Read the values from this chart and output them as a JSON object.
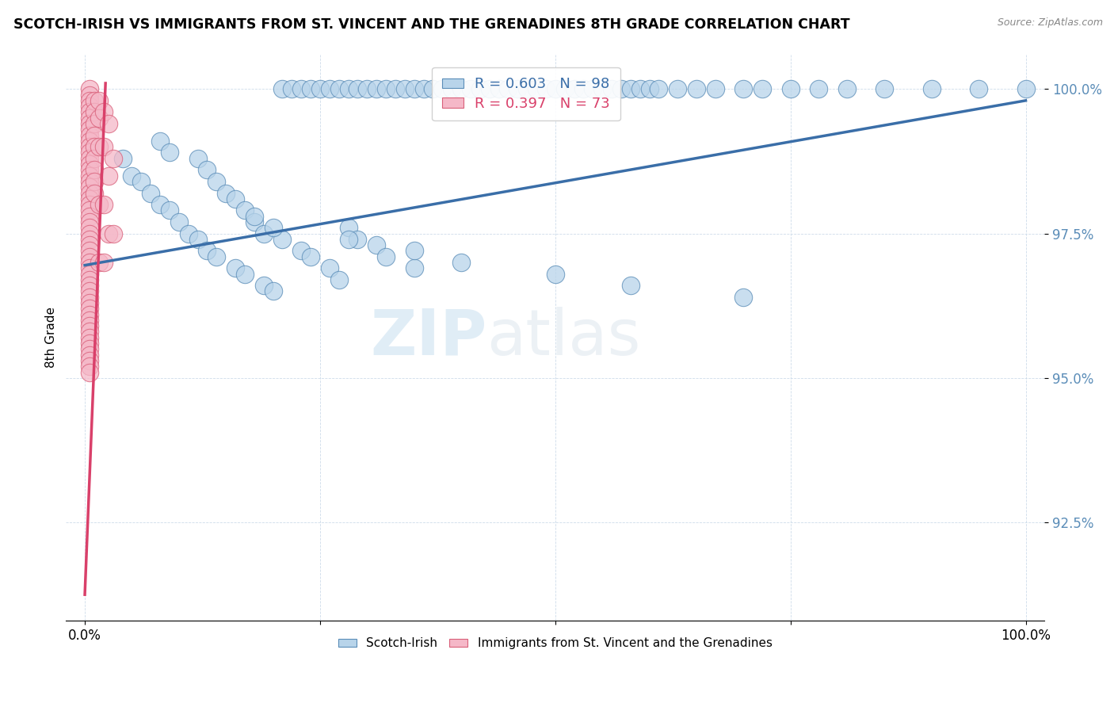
{
  "title": "SCOTCH-IRISH VS IMMIGRANTS FROM ST. VINCENT AND THE GRENADINES 8TH GRADE CORRELATION CHART",
  "source": "Source: ZipAtlas.com",
  "ylabel": "8th Grade",
  "xlim": [
    -0.02,
    1.02
  ],
  "ylim": [
    0.908,
    1.006
  ],
  "yticks": [
    0.925,
    0.95,
    0.975,
    1.0
  ],
  "ytick_labels": [
    "92.5%",
    "95.0%",
    "97.5%",
    "100.0%"
  ],
  "xticks": [
    0.0,
    0.25,
    0.5,
    0.75,
    1.0
  ],
  "xtick_labels": [
    "0.0%",
    "",
    "",
    "",
    "100.0%"
  ],
  "legend_r_blue": "R = 0.603",
  "legend_n_blue": "N = 98",
  "legend_r_pink": "R = 0.397",
  "legend_n_pink": "N = 73",
  "blue_fill": "#b8d4ea",
  "blue_edge": "#5b8db8",
  "pink_fill": "#f5b8c8",
  "pink_edge": "#d9607a",
  "blue_line": "#3a6ea8",
  "pink_line": "#d9406a",
  "watermark_color": "#c8dff0",
  "blue_line_x0": 0.0,
  "blue_line_y0": 0.9695,
  "blue_line_x1": 1.0,
  "blue_line_y1": 0.998,
  "pink_line_x0": 0.0,
  "pink_line_y0": 0.9125,
  "pink_line_x1": 0.022,
  "pink_line_y1": 1.001,
  "blue_x": [
    0.21,
    0.22,
    0.23,
    0.24,
    0.25,
    0.26,
    0.27,
    0.28,
    0.29,
    0.3,
    0.31,
    0.32,
    0.33,
    0.34,
    0.35,
    0.36,
    0.37,
    0.38,
    0.39,
    0.4,
    0.41,
    0.42,
    0.43,
    0.44,
    0.45,
    0.46,
    0.47,
    0.48,
    0.49,
    0.5,
    0.51,
    0.52,
    0.53,
    0.54,
    0.55,
    0.56,
    0.57,
    0.58,
    0.59,
    0.6,
    0.61,
    0.63,
    0.65,
    0.67,
    0.7,
    0.72,
    0.75,
    0.78,
    0.81,
    0.85,
    0.9,
    0.95,
    1.0,
    0.04,
    0.05,
    0.06,
    0.07,
    0.08,
    0.09,
    0.1,
    0.11,
    0.12,
    0.13,
    0.14,
    0.16,
    0.17,
    0.19,
    0.2,
    0.08,
    0.09,
    0.12,
    0.13,
    0.14,
    0.15,
    0.16,
    0.17,
    0.18,
    0.19,
    0.21,
    0.23,
    0.24,
    0.26,
    0.27,
    0.28,
    0.29,
    0.31,
    0.32,
    0.35,
    0.18,
    0.2,
    0.28,
    0.35,
    0.4,
    0.5,
    0.58,
    0.7
  ],
  "blue_y": [
    1.0,
    1.0,
    1.0,
    1.0,
    1.0,
    1.0,
    1.0,
    1.0,
    1.0,
    1.0,
    1.0,
    1.0,
    1.0,
    1.0,
    1.0,
    1.0,
    1.0,
    1.0,
    1.0,
    1.0,
    1.0,
    1.0,
    1.0,
    1.0,
    1.0,
    1.0,
    1.0,
    1.0,
    1.0,
    1.0,
    1.0,
    1.0,
    1.0,
    1.0,
    1.0,
    1.0,
    1.0,
    1.0,
    1.0,
    1.0,
    1.0,
    1.0,
    1.0,
    1.0,
    1.0,
    1.0,
    1.0,
    1.0,
    1.0,
    1.0,
    1.0,
    1.0,
    1.0,
    0.988,
    0.985,
    0.984,
    0.982,
    0.98,
    0.979,
    0.977,
    0.975,
    0.974,
    0.972,
    0.971,
    0.969,
    0.968,
    0.966,
    0.965,
    0.991,
    0.989,
    0.988,
    0.986,
    0.984,
    0.982,
    0.981,
    0.979,
    0.977,
    0.975,
    0.974,
    0.972,
    0.971,
    0.969,
    0.967,
    0.976,
    0.974,
    0.973,
    0.971,
    0.969,
    0.978,
    0.976,
    0.974,
    0.972,
    0.97,
    0.968,
    0.966,
    0.964
  ],
  "pink_x": [
    0.005,
    0.005,
    0.005,
    0.005,
    0.005,
    0.005,
    0.005,
    0.005,
    0.005,
    0.005,
    0.005,
    0.005,
    0.005,
    0.005,
    0.005,
    0.005,
    0.005,
    0.005,
    0.005,
    0.005,
    0.005,
    0.005,
    0.005,
    0.005,
    0.005,
    0.005,
    0.005,
    0.005,
    0.005,
    0.005,
    0.005,
    0.005,
    0.005,
    0.005,
    0.005,
    0.005,
    0.005,
    0.005,
    0.005,
    0.005,
    0.005,
    0.005,
    0.005,
    0.005,
    0.005,
    0.005,
    0.005,
    0.005,
    0.005,
    0.005,
    0.01,
    0.01,
    0.01,
    0.01,
    0.01,
    0.01,
    0.01,
    0.01,
    0.01,
    0.015,
    0.015,
    0.015,
    0.015,
    0.015,
    0.02,
    0.02,
    0.02,
    0.02,
    0.025,
    0.025,
    0.025,
    0.03,
    0.03
  ],
  "pink_y": [
    1.0,
    0.999,
    0.998,
    0.997,
    0.996,
    0.995,
    0.994,
    0.993,
    0.992,
    0.991,
    0.99,
    0.989,
    0.988,
    0.987,
    0.986,
    0.985,
    0.984,
    0.983,
    0.982,
    0.981,
    0.98,
    0.979,
    0.978,
    0.977,
    0.976,
    0.975,
    0.974,
    0.973,
    0.972,
    0.971,
    0.97,
    0.969,
    0.968,
    0.967,
    0.966,
    0.965,
    0.964,
    0.963,
    0.962,
    0.961,
    0.96,
    0.959,
    0.958,
    0.957,
    0.956,
    0.955,
    0.954,
    0.953,
    0.952,
    0.951,
    0.998,
    0.996,
    0.994,
    0.992,
    0.99,
    0.988,
    0.986,
    0.984,
    0.982,
    0.998,
    0.995,
    0.99,
    0.98,
    0.97,
    0.996,
    0.99,
    0.98,
    0.97,
    0.994,
    0.985,
    0.975,
    0.988,
    0.975
  ]
}
